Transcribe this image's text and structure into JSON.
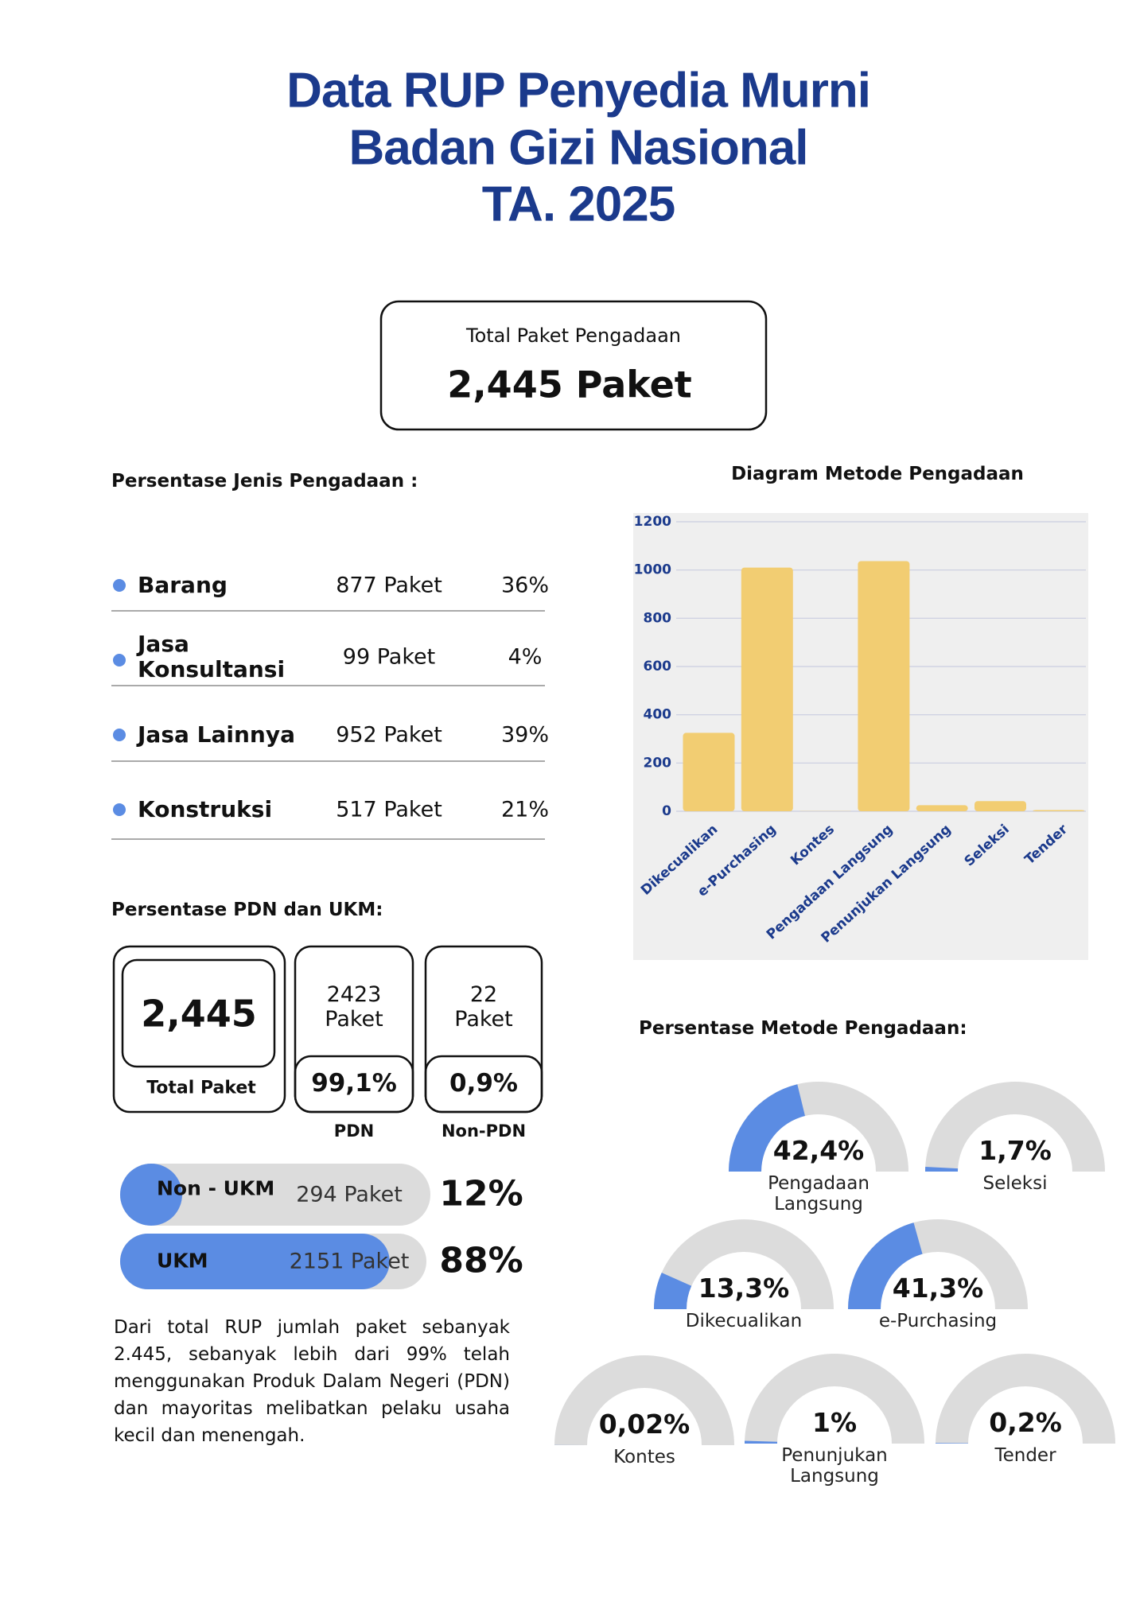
{
  "header": {
    "title": [
      "Data RUP Penyedia Murni",
      "Badan Gizi Nasional",
      "TA. 2025"
    ]
  },
  "total": {
    "label": "Total Paket Pengadaan",
    "value": "2,445 Paket"
  },
  "jenis": {
    "title": "Persentase Jenis Pengadaan :",
    "rows": [
      {
        "name": "Barang",
        "paket": "877 Paket",
        "persen": "36%"
      },
      {
        "name": "Jasa Konsultansi",
        "paket": "99 Paket",
        "persen": "4%"
      },
      {
        "name": "Jasa Lainnya",
        "paket": "952 Paket",
        "persen": "39%"
      },
      {
        "name": "Konstruksi",
        "paket": "517 Paket",
        "persen": "21%"
      }
    ]
  },
  "pdn": {
    "title": "Persentase PDN dan UKM:",
    "total": {
      "value": "2,445",
      "label": "Total Paket"
    },
    "items": [
      {
        "paket": "2423 Paket",
        "persen": "99,1%",
        "label": "PDN"
      },
      {
        "paket": "22 Paket",
        "persen": "0,9%",
        "label": "Non-PDN"
      }
    ]
  },
  "ukm": {
    "rows": [
      {
        "name": "Non - UKM",
        "paket": "294 Paket",
        "value": 12,
        "label": "12%"
      },
      {
        "name": "UKM",
        "paket": "2151 Paket",
        "value": 88,
        "label": "88%"
      }
    ]
  },
  "description": "Dari total RUP jumlah paket sebanyak 2.445, sebanyak lebih dari 99% telah menggunakan Produk Dalam Negeri (PDN) dan mayoritas melibatkan pelaku usaha kecil dan menengah.",
  "chart_data": [
    {
      "type": "bar",
      "title": "Diagram Metode Pengadaan",
      "categories": [
        "Dikecualikan",
        "e-Purchasing",
        "Kontes",
        "Pengadaan Langsung",
        "Penunjukan Langsung",
        "Seleksi",
        "Tender"
      ],
      "values": [
        325,
        1010,
        1,
        1037,
        25,
        42,
        5
      ],
      "color": "#f2cd72",
      "ylim": [
        0,
        1200
      ],
      "yticks": [
        0,
        200,
        400,
        600,
        800,
        1000,
        1200
      ],
      "grid": true
    },
    {
      "type": "gauge",
      "title": "Persentase Metode Pengadaan:",
      "categories": [
        "Pengadaan Langsung",
        "Seleksi",
        "Dikecualikan",
        "e-Purchasing",
        "Kontes",
        "Penunjukan Langsung",
        "Tender"
      ],
      "values": [
        42.4,
        1.7,
        13.3,
        41.3,
        0.02,
        1,
        0.2
      ],
      "value_labels": [
        "42,4%",
        "1,7%",
        "13,3%",
        "41,3%",
        "0,02%",
        "1%",
        "0,2%"
      ],
      "color": "#5b8ce3",
      "track_color": "#dcdcdc"
    }
  ]
}
